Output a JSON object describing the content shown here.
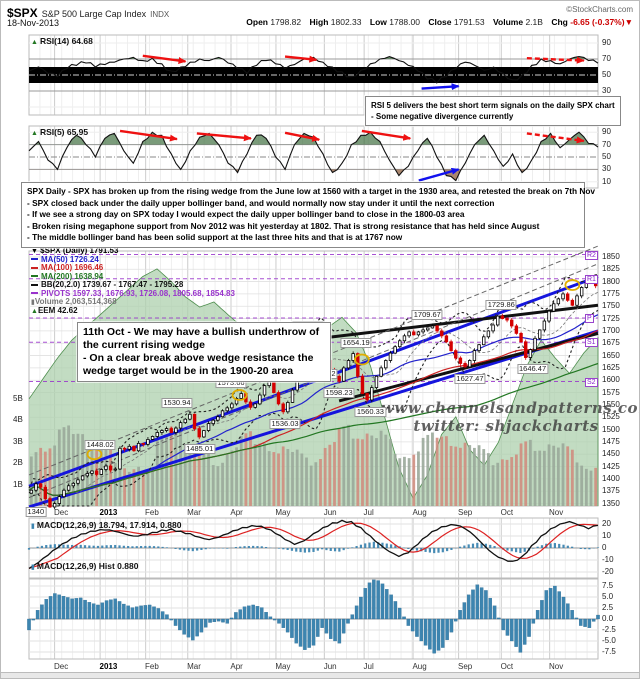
{
  "header": {
    "symbol": "$SPX",
    "name": "S&P 500 Large Cap Index",
    "exchange": "INDX",
    "copyright": "©StockCharts.com",
    "date": "18-Nov-2013",
    "ohlc": {
      "open_label": "Open",
      "open": "1798.82",
      "high_label": "High",
      "high": "1802.33",
      "low_label": "Low",
      "low": "1788.00",
      "close_label": "Close",
      "close": "1791.53",
      "volume_label": "Volume",
      "volume": "2.1B",
      "chg_label": "Chg",
      "chg": "-6.65 (-0.37%)",
      "chg_arrow": "▼"
    }
  },
  "legend": {
    "rsi14": "RSI(14) 64.68",
    "rsi5": "RSI(5) 65.95",
    "spx": "$SPX (Daily) 1791.53",
    "ma50": "MA(50) 1726.24",
    "ma100": "MA(100) 1696.46",
    "ma200": "MA(200) 1638.94",
    "bb": "BB(20,2.0) 1739.67 - 1767.47 - 1795.28",
    "pivots": "PIVOTS 1597.33, 1676.93, 1726.08, 1805.68, 1854.83",
    "volume": "Volume 2,063,514,368",
    "eem": "EEM 42.62",
    "macd": "MACD(12,26,9) 18.794, 17.914, 0.880",
    "macd_hist": "MACD(12,26,9) Hist 0.880"
  },
  "notes": {
    "box_rsi": [
      "RSI 5 delivers the best short term signals on the daily SPX chart",
      "- Some negative divergence currently"
    ],
    "box_main": [
      "SPX Daily - SPX has broken up from the rising wedge from the June low at 1560 with a target in the 1930 area, and retested the break on 7th Nov",
      "- SPX closed back under the daily upper bollinger band, and would normally now stay under it until the next correction",
      "- If we see a strong day on SPX today I would expect the daily upper bollinger band to close in the 1800-03 area",
      "- Broken rising megaphone support from Nov 2012 was hit yesterday at 1802. That is strong resistance that has held since August",
      "- The middle bollinger band has been solid support at the last three hits and that is at 1767 now"
    ],
    "box_oct": [
      "11th Oct - We may have a bullish underthrow of",
      "the current rising wedge",
      "- On a clear break above wedge resistance the",
      "wedge target would be in the 1900-20 area"
    ],
    "watermark_1": "www.channelsandpatterns.com",
    "watermark_2": "twitter: shjackcharts"
  },
  "chart_data": {
    "type": "candlestick-multi-panel",
    "x_axis": {
      "months": [
        "Dec",
        "2013",
        "Feb",
        "Mar",
        "Apr",
        "May",
        "Jun",
        "Jul",
        "Aug",
        "Sep",
        "Oct",
        "Nov"
      ],
      "month_x": [
        0.058,
        0.138,
        0.218,
        0.292,
        0.368,
        0.447,
        0.532,
        0.602,
        0.688,
        0.768,
        0.843,
        0.928
      ],
      "weekly_divisions": 52
    },
    "rsi14": {
      "current": 64.68,
      "yticks": [
        90,
        70,
        50,
        30,
        10
      ],
      "band": [
        40,
        60
      ],
      "values": [
        55,
        60,
        52,
        48,
        58,
        62,
        65,
        60,
        63,
        66,
        70,
        72,
        68,
        71,
        64,
        55,
        60,
        66,
        70,
        68,
        72,
        65,
        58,
        52,
        62,
        68,
        64,
        58,
        63,
        70,
        72,
        66,
        60,
        54,
        48,
        56,
        64,
        70,
        73,
        68,
        62,
        55,
        45,
        40,
        48,
        58,
        66,
        62,
        56,
        60,
        52,
        44,
        50,
        62,
        70,
        68,
        64,
        70,
        73,
        68,
        64.7
      ],
      "arrows": [
        {
          "x1": 0.2,
          "v1": 74,
          "x2": 0.275,
          "v2": 67,
          "color": "red"
        },
        {
          "x1": 0.45,
          "v1": 73,
          "x2": 0.505,
          "v2": 69,
          "color": "red"
        },
        {
          "x1": 0.875,
          "v1": 71,
          "x2": 0.975,
          "v2": 68,
          "color": "red",
          "dash": true
        },
        {
          "x1": 0.69,
          "v1": 33,
          "x2": 0.755,
          "v2": 36,
          "color": "blue"
        }
      ]
    },
    "rsi5": {
      "current": 65.95,
      "yticks": [
        90,
        70,
        50,
        30,
        10
      ],
      "values": [
        60,
        75,
        45,
        30,
        65,
        85,
        70,
        50,
        80,
        88,
        60,
        40,
        75,
        90,
        85,
        55,
        30,
        60,
        82,
        88,
        70,
        40,
        25,
        55,
        85,
        80,
        50,
        30,
        70,
        88,
        82,
        55,
        25,
        40,
        70,
        85,
        90,
        75,
        45,
        20,
        35,
        60,
        80,
        50,
        20,
        12,
        40,
        70,
        85,
        60,
        35,
        55,
        25,
        45,
        75,
        88,
        65,
        78,
        90,
        72,
        66
      ],
      "arrows": [
        {
          "x1": 0.16,
          "v1": 92,
          "x2": 0.26,
          "v2": 79,
          "color": "red"
        },
        {
          "x1": 0.295,
          "v1": 88,
          "x2": 0.39,
          "v2": 80,
          "color": "red"
        },
        {
          "x1": 0.45,
          "v1": 89,
          "x2": 0.51,
          "v2": 78,
          "color": "red"
        },
        {
          "x1": 0.585,
          "v1": 92,
          "x2": 0.67,
          "v2": 80,
          "color": "red"
        },
        {
          "x1": 0.875,
          "v1": 88,
          "x2": 0.975,
          "v2": 76,
          "color": "red",
          "dash": true
        },
        {
          "x1": 0.685,
          "v1": 12,
          "x2": 0.755,
          "v2": 30,
          "color": "blue"
        }
      ]
    },
    "price_panel": {
      "ylim": [
        1345,
        1862
      ],
      "yticks": [
        1850,
        1825,
        1800,
        1775,
        1750,
        1725,
        1700,
        1675,
        1650,
        1625,
        1600,
        1575,
        1550,
        1525,
        1500,
        1475,
        1450,
        1425,
        1400,
        1375,
        1350
      ],
      "left_ticks": [
        {
          "label": "5B",
          "b": 5
        },
        {
          "label": "4B",
          "b": 4
        },
        {
          "label": "3B",
          "b": 3
        },
        {
          "label": "2B",
          "b": 2
        },
        {
          "label": "1B",
          "b": 1
        }
      ],
      "closes": [
        1377,
        1390,
        1383,
        1360,
        1343,
        1350,
        1364,
        1377,
        1386,
        1391,
        1398,
        1406,
        1411,
        1416,
        1409,
        1419,
        1426,
        1418,
        1420,
        1462,
        1460,
        1466,
        1457,
        1472,
        1470,
        1480,
        1486,
        1494,
        1498,
        1502,
        1494,
        1503,
        1514,
        1521,
        1531,
        1502,
        1485,
        1498,
        1512,
        1519,
        1526,
        1538,
        1544,
        1552,
        1563,
        1573,
        1556,
        1545,
        1552,
        1570,
        1589,
        1597,
        1575,
        1552,
        1536,
        1555,
        1580,
        1614,
        1633,
        1650,
        1667,
        1687,
        1670,
        1640,
        1622,
        1608,
        1598,
        1625,
        1640,
        1654,
        1608,
        1573,
        1560,
        1585,
        1608,
        1625,
        1640,
        1655,
        1668,
        1680,
        1690,
        1698,
        1692,
        1698,
        1702,
        1706,
        1710,
        1700,
        1690,
        1678,
        1660,
        1645,
        1634,
        1627,
        1640,
        1660,
        1672,
        1688,
        1700,
        1712,
        1730,
        1725,
        1722,
        1710,
        1695,
        1678,
        1646,
        1662,
        1685,
        1702,
        1720,
        1740,
        1755,
        1765,
        1775,
        1762,
        1752,
        1771,
        1788,
        1798,
        1802,
        1791.5
      ],
      "eem_overlay": {
        "current": 42.62,
        "range": [
          36,
          46
        ],
        "values": [
          40.2,
          41,
          41.8,
          42.5,
          43,
          43.5,
          44,
          44.5,
          45,
          45.3,
          44.8,
          44.2,
          43.8,
          44,
          43.5,
          43,
          42.5,
          42.8,
          42.3,
          41.8,
          42.5,
          43,
          43.4,
          42.8,
          41.5,
          39.5,
          37.5,
          36.3,
          37.2,
          38.8,
          39.5,
          38.2,
          37.6,
          38.5,
          40,
          41.5,
          42.5,
          41.8,
          41.2,
          42,
          42.6
        ]
      },
      "volume_billions": [
        3.2,
        2.8,
        3.4,
        3.0,
        2.6,
        3.1,
        2.4,
        2.0,
        1.6,
        2.9,
        3.3,
        2.7,
        3.0,
        2.5,
        2.8,
        3.2,
        2.6,
        2.3,
        2.7,
        3.0,
        2.5,
        2.9,
        3.4,
        2.8,
        3.1,
        3.6,
        3.0,
        2.7,
        3.2,
        2.9,
        2.5,
        2.8,
        3.1,
        2.6,
        2.4,
        2.8,
        2.3,
        2.6,
        2.9,
        2.4,
        2.1
      ],
      "trendlines": [
        {
          "name": "megaphone-upper",
          "x1": 0.0,
          "p1": 1385,
          "x2": 1.0,
          "p2": 1810,
          "color": "#1515dd",
          "width": 3
        },
        {
          "name": "megaphone-lower",
          "x1": 0.0,
          "p1": 1343,
          "x2": 1.0,
          "p2": 1700,
          "color": "#1515dd",
          "width": 3
        },
        {
          "name": "wedge-resistance",
          "x1": 0.505,
          "p1": 1684,
          "x2": 1.0,
          "p2": 1752,
          "color": "#111111",
          "width": 3
        },
        {
          "name": "wedge-support",
          "x1": 0.545,
          "p1": 1558,
          "x2": 1.0,
          "p2": 1695,
          "color": "#111111",
          "width": 3
        },
        {
          "name": "channel-upper",
          "x1": 0.0,
          "p1": 1408,
          "x2": 1.0,
          "p2": 1872,
          "color": "#666666",
          "width": 1,
          "dash": "5,3"
        },
        {
          "name": "channel-mid",
          "x1": 0.0,
          "p1": 1362,
          "x2": 1.0,
          "p2": 1836,
          "color": "#666666",
          "width": 1,
          "dash": "5,3"
        }
      ],
      "pivots": [
        {
          "label": "R2",
          "value": 1854.83
        },
        {
          "label": "R1",
          "value": 1805.68
        },
        {
          "label": "P",
          "value": 1726.08
        },
        {
          "label": "S1",
          "value": 1676.93
        },
        {
          "label": "S2",
          "value": 1597.33
        }
      ],
      "price_labels": [
        {
          "text": "1340",
          "x": 0.012,
          "price": 1352,
          "pos": "below"
        },
        {
          "text": "1448.02",
          "x": 0.125,
          "price": 1452,
          "pos": "above"
        },
        {
          "text": "1530.94",
          "x": 0.26,
          "price": 1537,
          "pos": "above"
        },
        {
          "text": "1485.01",
          "x": 0.3,
          "price": 1479,
          "pos": "below"
        },
        {
          "text": "1573.66",
          "x": 0.355,
          "price": 1579,
          "pos": "above"
        },
        {
          "text": "1597.35",
          "x": 0.415,
          "price": 1603,
          "pos": "above"
        },
        {
          "text": "1536.03",
          "x": 0.45,
          "price": 1530,
          "pos": "below"
        },
        {
          "text": "1687.18",
          "x": 0.49,
          "price": 1693,
          "pos": "above"
        },
        {
          "text": "1636.42",
          "x": 0.515,
          "price": 1630,
          "pos": "below"
        },
        {
          "text": "1598.23",
          "x": 0.545,
          "price": 1592,
          "pos": "below"
        },
        {
          "text": "1654.19",
          "x": 0.575,
          "price": 1660,
          "pos": "above"
        },
        {
          "text": "1560.33",
          "x": 0.6,
          "price": 1554,
          "pos": "below"
        },
        {
          "text": "1709.67",
          "x": 0.7,
          "price": 1716,
          "pos": "above"
        },
        {
          "text": "1627.47",
          "x": 0.775,
          "price": 1621,
          "pos": "below"
        },
        {
          "text": "1729.86",
          "x": 0.83,
          "price": 1736,
          "pos": "above"
        },
        {
          "text": "1646.47",
          "x": 0.885,
          "price": 1640,
          "pos": "below"
        }
      ],
      "highlight_circles": [
        {
          "x": 0.115,
          "price": 1450
        },
        {
          "x": 0.37,
          "price": 1570
        },
        {
          "x": 0.585,
          "price": 1642
        },
        {
          "x": 0.955,
          "price": 1793
        }
      ]
    },
    "macd": {
      "current": [
        18.794,
        17.914,
        0.88
      ],
      "yticks": [
        20,
        10,
        0,
        -10,
        -20
      ],
      "macd": [
        -17,
        -12,
        -6,
        0,
        5,
        9,
        12,
        14,
        15,
        14,
        12,
        10,
        11,
        13,
        15,
        16,
        14,
        12,
        9,
        7,
        9,
        12,
        15,
        17,
        18,
        16,
        12,
        7,
        3,
        6,
        12,
        17,
        21,
        23,
        22,
        17,
        10,
        3,
        -3,
        -7,
        -4,
        3,
        10,
        15,
        18,
        19,
        16,
        10,
        2,
        -5,
        -9,
        -11,
        -7,
        2,
        10,
        16,
        20,
        22,
        19,
        16,
        18.8
      ]
    },
    "hist": {
      "current": 0.88,
      "yticks": [
        7.5,
        5.0,
        2.5,
        0.0,
        -2.5,
        -5.0,
        -7.5
      ],
      "values": [
        -2.5,
        2,
        4.5,
        5.8,
        5.2,
        4.6,
        4.8,
        3.8,
        3.2,
        4.2,
        4.6,
        3.4,
        2.6,
        3,
        3.2,
        2.4,
        1,
        -1.5,
        -3.5,
        -4.8,
        -3,
        -0.8,
        -0.5,
        -1,
        1.5,
        2.8,
        3.2,
        2.6,
        0.5,
        -1,
        -3,
        -5.5,
        -7,
        -6,
        -2,
        -4.5,
        -5.5,
        -1,
        3,
        7,
        9.5,
        8,
        5.5,
        2.5,
        -1.5,
        -4,
        -6,
        -7.8,
        -6.5,
        -3,
        2,
        5.5,
        7.8,
        6.5,
        3,
        -2.5,
        -5,
        -7.6,
        -4,
        2,
        6.5,
        7.5,
        5,
        2,
        -1.5,
        -2,
        0.9
      ]
    },
    "colors": {
      "candle_up": "#000000",
      "candle_down": "#d40000",
      "ma50": "#2222cc",
      "ma100": "#cc2222",
      "ma200": "#227722",
      "bollinger": "#222222",
      "pivot": "#9933cc",
      "histogram": "#3d85b0",
      "eem_fill": "#aed0ae",
      "eem_line": "#4e8e4e",
      "vol_up": "#9aa89a",
      "vol_down": "#cf8d7f",
      "signal_line": "#dd2222",
      "arrow_red": "#ee1111",
      "arrow_blue": "#1111ee",
      "circle": "#e0ae00"
    }
  }
}
